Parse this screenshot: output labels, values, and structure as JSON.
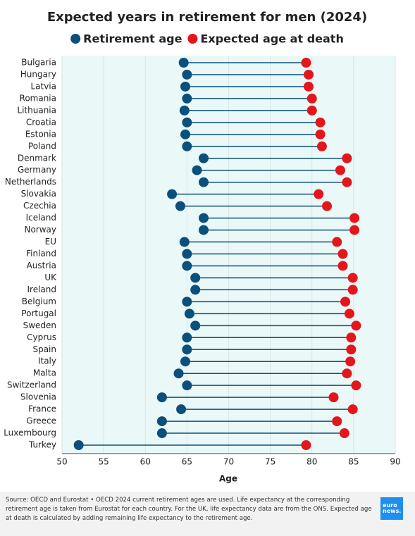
{
  "chart_data": {
    "type": "dumbbell",
    "title": "Expected years in retirement for men (2024)",
    "x_label": "Age",
    "categories": [
      "Bulgaria",
      "Hungary",
      "Latvia",
      "Romania",
      "Lithuania",
      "Croatia",
      "Estonia",
      "Poland",
      "Denmark",
      "Germany",
      "Netherlands",
      "Slovakia",
      "Czechia",
      "Iceland",
      "Norway",
      "EU",
      "Finland",
      "Austria",
      "UK",
      "Ireland",
      "Belgium",
      "Portugal",
      "Sweden",
      "Cyprus",
      "Spain",
      "Italy",
      "Malta",
      "Switzerland",
      "Slovenia",
      "France",
      "Greece",
      "Luxembourg",
      "Turkey"
    ],
    "series": [
      {
        "name": "Retirement age",
        "color": "#0b4f7c",
        "values": [
          64.6,
          65.0,
          64.8,
          65.0,
          64.7,
          65.0,
          64.8,
          65.0,
          67.0,
          66.2,
          67.0,
          63.2,
          64.2,
          67.0,
          67.0,
          64.7,
          65.0,
          65.0,
          66.0,
          66.0,
          65.0,
          65.3,
          66.0,
          65.0,
          65.0,
          64.8,
          64.0,
          65.0,
          62.0,
          64.3,
          62.0,
          62.0,
          52.0
        ]
      },
      {
        "name": "Expected age at death",
        "color": "#e3161b",
        "values": [
          79.3,
          79.6,
          79.6,
          80.0,
          80.0,
          81.0,
          81.0,
          81.2,
          84.2,
          83.4,
          84.2,
          80.8,
          81.8,
          85.1,
          85.1,
          83.0,
          83.7,
          83.7,
          84.9,
          84.9,
          84.0,
          84.5,
          85.3,
          84.7,
          84.7,
          84.6,
          84.2,
          85.3,
          82.6,
          84.9,
          83.0,
          83.9,
          79.3
        ]
      }
    ],
    "xlim": [
      50,
      90
    ],
    "xticks": [
      50,
      55,
      60,
      65,
      70,
      75,
      80,
      85,
      90
    ],
    "grid": true,
    "source": "Source: OECD and Eurostat • OECD 2024 current retirement ages are used. Life expectancy at the corresponding retirement age is taken from Eurostat for each country. For the UK, life expectancy data are from the ONS. Expected age at death is calculated by adding remaining life expectancy to the retirement age.",
    "logo": [
      "euro",
      "news."
    ]
  }
}
